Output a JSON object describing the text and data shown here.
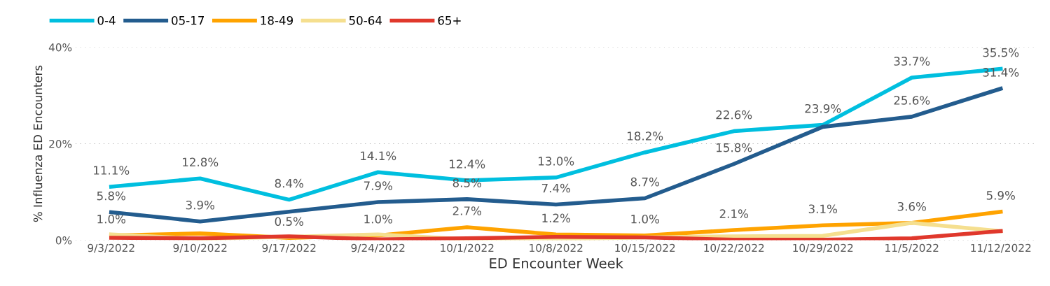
{
  "chart_data": {
    "type": "line",
    "xlabel": "ED Encounter Week",
    "ylabel": "% Influenza ED Encounters",
    "categories": [
      "9/3/2022",
      "9/10/2022",
      "9/17/2022",
      "9/24/2022",
      "10/1/2022",
      "10/8/2022",
      "10/15/2022",
      "10/22/2022",
      "10/29/2022",
      "11/5/2022",
      "11/12/2022"
    ],
    "series": [
      {
        "name": "0-4",
        "color": "#00bfdf",
        "values": [
          11.1,
          12.8,
          8.4,
          14.1,
          12.4,
          13.0,
          18.2,
          22.6,
          23.9,
          33.7,
          35.5
        ],
        "value_labels": [
          "11.1%",
          "12.8%",
          "8.4%",
          "14.1%",
          "12.4%",
          "13.0%",
          "18.2%",
          "22.6%",
          "23.9%",
          "33.7%",
          "35.5%"
        ]
      },
      {
        "name": "05-17",
        "color": "#235c8e",
        "values": [
          5.8,
          3.9,
          5.9,
          7.9,
          8.5,
          7.4,
          8.7,
          15.8,
          23.5,
          25.6,
          31.4
        ],
        "value_labels": [
          "5.8%",
          "3.9%",
          null,
          "7.9%",
          "8.5%",
          "7.4%",
          "8.7%",
          "15.8%",
          null,
          "25.6%",
          "31.4%"
        ]
      },
      {
        "name": "18-49",
        "color": "#ffa300",
        "values": [
          1.0,
          1.4,
          0.5,
          1.0,
          2.7,
          1.2,
          1.0,
          2.1,
          3.1,
          3.6,
          5.9
        ],
        "value_labels": [
          "1.0%",
          null,
          "0.5%",
          "1.0%",
          "2.7%",
          "1.2%",
          "1.0%",
          "2.1%",
          "3.1%",
          "3.6%",
          "5.9%"
        ]
      },
      {
        "name": "50-64",
        "color": "#f5df8f",
        "values": [
          1.2,
          0.3,
          0.7,
          1.2,
          0.2,
          0.2,
          0.6,
          0.8,
          0.9,
          3.6,
          1.9
        ]
      },
      {
        "name": "65+",
        "color": "#e0382c",
        "values": [
          0.5,
          0.4,
          0.8,
          0.2,
          0.4,
          0.7,
          0.6,
          0.1,
          0.1,
          0.4,
          1.9
        ]
      }
    ],
    "ylim": [
      0,
      40
    ],
    "yticks": [
      {
        "value": 0,
        "label": "0%"
      },
      {
        "value": 20,
        "label": "20%"
      },
      {
        "value": 40,
        "label": "40%"
      }
    ],
    "grid": "y",
    "legend": "top left",
    "line_style": "solid",
    "marker": "none"
  }
}
